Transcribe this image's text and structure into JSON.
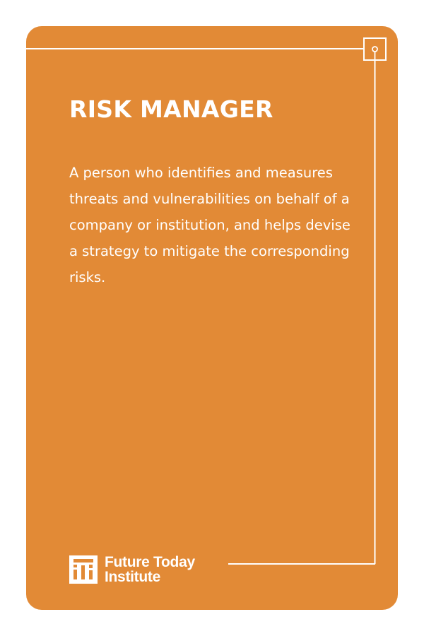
{
  "card": {
    "title": "RISK MANAGER",
    "definition": "A person who identifies and measures threats and vulnerabilities on behalf of a company or institution, and helps devise a strategy to mitigate the corresponding risks.",
    "background_color": "#E28A36",
    "text_color": "#FFFFFF"
  },
  "brand": {
    "name_line1": "Future Today",
    "name_line2": "Institute",
    "logo_icon": "fti-logo-icon"
  }
}
